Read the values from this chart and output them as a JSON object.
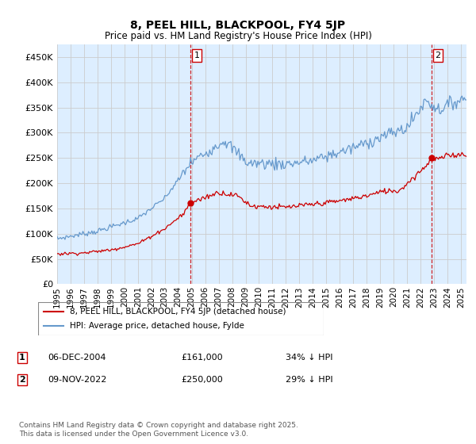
{
  "title": "8, PEEL HILL, BLACKPOOL, FY4 5JP",
  "subtitle": "Price paid vs. HM Land Registry's House Price Index (HPI)",
  "ylim": [
    0,
    475000
  ],
  "yticks": [
    0,
    50000,
    100000,
    150000,
    200000,
    250000,
    300000,
    350000,
    400000,
    450000
  ],
  "legend_entries": [
    "8, PEEL HILL, BLACKPOOL, FY4 5JP (detached house)",
    "HPI: Average price, detached house, Fylde"
  ],
  "line_colors": [
    "#cc0000",
    "#6699cc"
  ],
  "vline_color": "#cc0000",
  "vline_style": "--",
  "marker1": {
    "date": "06-DEC-2004",
    "price": "£161,000",
    "note": "34% ↓ HPI"
  },
  "marker2": {
    "date": "09-NOV-2022",
    "price": "£250,000",
    "note": "29% ↓ HPI"
  },
  "footnote": "Contains HM Land Registry data © Crown copyright and database right 2025.\nThis data is licensed under the Open Government Licence v3.0.",
  "background_color": "#ffffff",
  "grid_color": "#cccccc",
  "plot_bg": "#ddeeff"
}
